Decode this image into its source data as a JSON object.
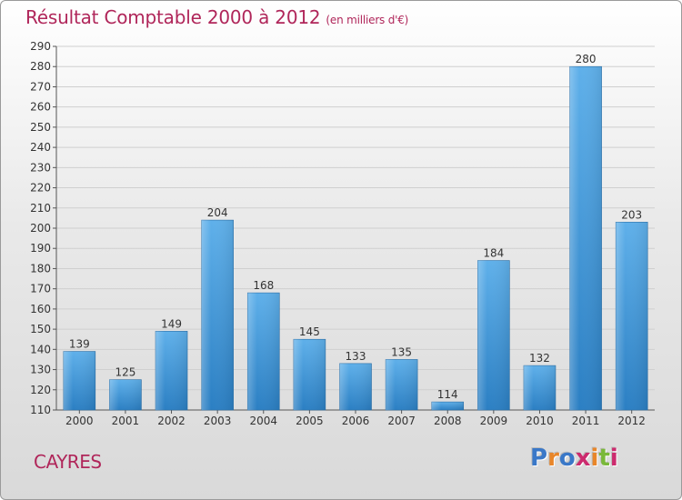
{
  "header": {
    "title": "Résultat Comptable 2000 à 2012",
    "subtitle": "(en milliers d'€)"
  },
  "footer": {
    "place": "CAYRES",
    "brand": "Proxiti"
  },
  "colors": {
    "title": "#b0265a",
    "bar_light": "#5fb0ea",
    "bar_dark": "#2b7fc3",
    "grid": "#cfcfcf",
    "axis": "#555555",
    "brand_letters": [
      "#3a78c8",
      "#e8862a",
      "#3a78c8",
      "#cc2b6e",
      "#e8862a",
      "#7ab83a",
      "#cc2b6e"
    ]
  },
  "chart_data": {
    "type": "bar",
    "title": "Résultat Comptable 2000 à 2012",
    "subtitle": "(en milliers d'€)",
    "categories": [
      "2000",
      "2001",
      "2002",
      "2003",
      "2004",
      "2005",
      "2006",
      "2007",
      "2008",
      "2009",
      "2010",
      "2011",
      "2012"
    ],
    "values": [
      139,
      125,
      149,
      204,
      168,
      145,
      133,
      135,
      114,
      184,
      132,
      280,
      203
    ],
    "ylim": [
      110,
      290
    ],
    "ytick_step": 10,
    "xlabel": "",
    "ylabel": "",
    "grid": true
  }
}
